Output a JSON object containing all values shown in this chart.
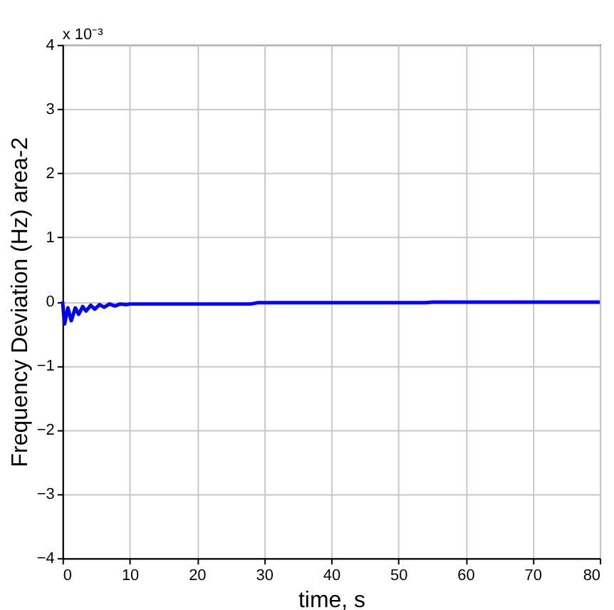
{
  "chart_data": {
    "type": "line",
    "xlabel": "time, s",
    "ylabel": "Frequency Deviation (Hz) area-2",
    "annotations": [
      "x 10⁻³"
    ],
    "x": [
      0,
      0.3,
      0.8,
      1.3,
      1.9,
      2.4,
      3,
      3.5,
      4.2,
      4.8,
      5.5,
      6.2,
      7,
      7.8,
      8.6,
      9.5,
      10,
      28,
      29,
      54,
      55,
      80
    ],
    "series": [
      {
        "color": "#0000ff",
        "values": [
          0,
          -0.35,
          -0.1,
          -0.3,
          -0.1,
          -0.2,
          -0.08,
          -0.15,
          -0.06,
          -0.12,
          -0.05,
          -0.09,
          -0.04,
          -0.07,
          -0.04,
          -0.05,
          -0.04,
          -0.04,
          -0.02,
          -0.02,
          -0.01,
          -0.01
        ]
      }
    ],
    "xlim": [
      0,
      80
    ],
    "xticks": [
      0,
      10,
      20,
      30,
      40,
      50,
      60,
      70,
      80
    ],
    "ylim": [
      -4,
      4
    ],
    "yticks": [
      -4,
      -3,
      -2,
      -1,
      0,
      1,
      2,
      3,
      4
    ],
    "grid": true,
    "marker": "none",
    "line_style": "solid"
  }
}
